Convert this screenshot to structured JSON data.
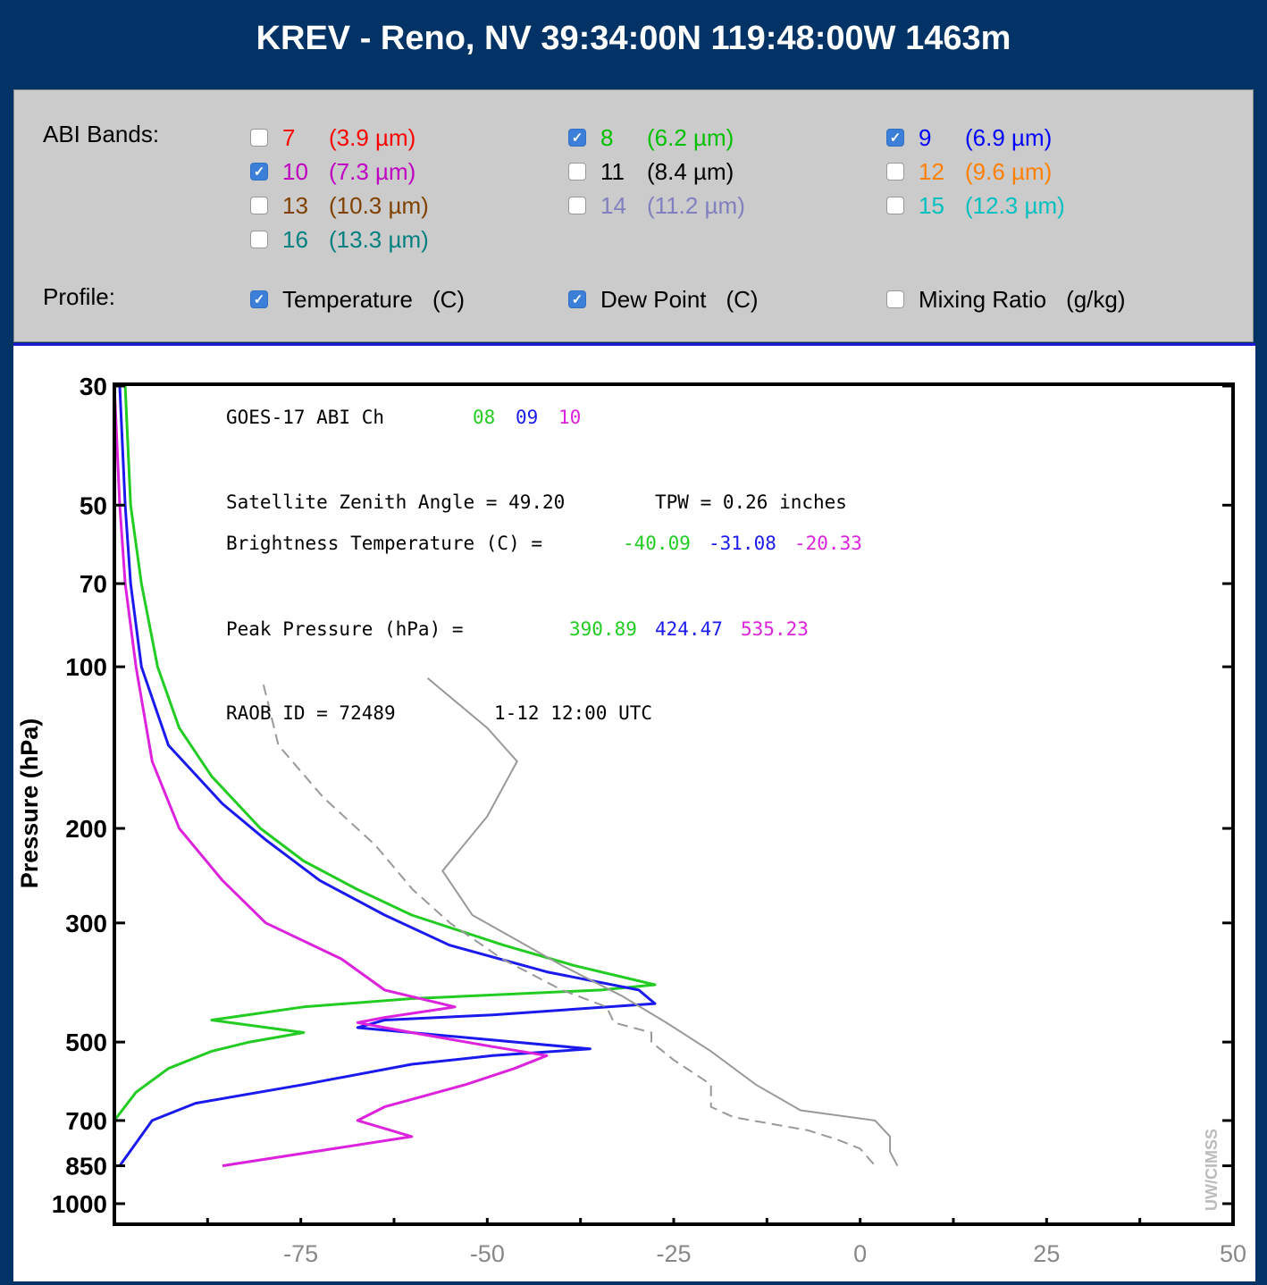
{
  "title": "KREV - Reno, NV 39:34:00N 119:48:00W 1463m",
  "controls": {
    "bands_label": "ABI Bands:",
    "profile_label": "Profile:",
    "bands": [
      {
        "num": "7",
        "wl": "(3.9 µm)",
        "checked": false,
        "color": "#ff0000"
      },
      {
        "num": "8",
        "wl": "(6.2 µm)",
        "checked": true,
        "color": "#00c000"
      },
      {
        "num": "9",
        "wl": "(6.9 µm)",
        "checked": true,
        "color": "#0000ff"
      },
      {
        "num": "10",
        "wl": "(7.3 µm)",
        "checked": true,
        "color": "#c000c0"
      },
      {
        "num": "11",
        "wl": "(8.4 µm)",
        "checked": false,
        "color": "#000000"
      },
      {
        "num": "12",
        "wl": "(9.6 µm)",
        "checked": false,
        "color": "#ff8000"
      },
      {
        "num": "13",
        "wl": "(10.3 µm)",
        "checked": false,
        "color": "#804000"
      },
      {
        "num": "14",
        "wl": "(11.2 µm)",
        "checked": false,
        "color": "#8080c0"
      },
      {
        "num": "15",
        "wl": "(12.3 µm)",
        "checked": false,
        "color": "#00c0c0"
      },
      {
        "num": "16",
        "wl": "(13.3 µm)",
        "checked": false,
        "color": "#008080"
      }
    ],
    "profiles": [
      {
        "name": "Temperature",
        "unit": "(C)",
        "checked": true
      },
      {
        "name": "Dew Point",
        "unit": "(C)",
        "checked": true
      },
      {
        "name": "Mixing Ratio",
        "unit": "(g/kg)",
        "checked": false
      }
    ]
  },
  "chart_data": {
    "type": "line",
    "ylabel": "Pressure (hPa)",
    "y_scale": "log",
    "y_ticks": [
      30,
      50,
      70,
      100,
      200,
      300,
      500,
      700,
      850,
      1000
    ],
    "x_ticks": [
      -75,
      -50,
      -25,
      0,
      25,
      50
    ],
    "xlim": [
      -100,
      50
    ],
    "annotations": {
      "header": "GOES-17 ABI  Ch",
      "channels": [
        "08",
        "09",
        "10"
      ],
      "zenith": "Satellite Zenith Angle = 49.20",
      "tpw": "TPW = 0.26 inches",
      "bt_label": "Brightness Temperature (C) =",
      "bt_values": [
        "-40.09",
        "-31.08",
        "-20.33"
      ],
      "peak_label": "Peak Pressure (hPa) =",
      "peak_values": [
        "390.89",
        "424.47",
        "535.23"
      ],
      "raob": "RAOB ID = 72489",
      "time": "1-12 12:00 UTC",
      "credit": "UW/CIMSS"
    },
    "weighting_functions": [
      {
        "channel": "08",
        "color": "#22cc22",
        "points": [
          [
            0.02,
            30
          ],
          [
            0.03,
            50
          ],
          [
            0.05,
            70
          ],
          [
            0.08,
            100
          ],
          [
            0.12,
            130
          ],
          [
            0.18,
            160
          ],
          [
            0.27,
            200
          ],
          [
            0.35,
            230
          ],
          [
            0.45,
            260
          ],
          [
            0.55,
            290
          ],
          [
            0.72,
            330
          ],
          [
            0.85,
            360
          ],
          [
            1.0,
            391
          ],
          [
            0.9,
            400
          ],
          [
            0.55,
            415
          ],
          [
            0.35,
            430
          ],
          [
            0.18,
            455
          ],
          [
            0.35,
            480
          ],
          [
            0.25,
            500
          ],
          [
            0.18,
            520
          ],
          [
            0.1,
            560
          ],
          [
            0.04,
            620
          ],
          [
            0.0,
            700
          ]
        ]
      },
      {
        "channel": "09",
        "color": "#1a1aee",
        "points": [
          [
            0.01,
            30
          ],
          [
            0.02,
            50
          ],
          [
            0.03,
            70
          ],
          [
            0.05,
            100
          ],
          [
            0.1,
            140
          ],
          [
            0.2,
            180
          ],
          [
            0.28,
            210
          ],
          [
            0.38,
            250
          ],
          [
            0.5,
            290
          ],
          [
            0.62,
            330
          ],
          [
            0.8,
            370
          ],
          [
            0.97,
            400
          ],
          [
            1.0,
            424
          ],
          [
            0.7,
            445
          ],
          [
            0.5,
            455
          ],
          [
            0.45,
            470
          ],
          [
            0.88,
            515
          ],
          [
            0.7,
            530
          ],
          [
            0.55,
            550
          ],
          [
            0.35,
            600
          ],
          [
            0.15,
            650
          ],
          [
            0.07,
            700
          ],
          [
            0.01,
            850
          ]
        ]
      },
      {
        "channel": "10",
        "color": "#dd22dd",
        "points": [
          [
            0.0,
            30
          ],
          [
            0.01,
            50
          ],
          [
            0.02,
            70
          ],
          [
            0.04,
            100
          ],
          [
            0.07,
            150
          ],
          [
            0.12,
            200
          ],
          [
            0.2,
            250
          ],
          [
            0.28,
            300
          ],
          [
            0.42,
            350
          ],
          [
            0.5,
            400
          ],
          [
            0.63,
            430
          ],
          [
            0.5,
            450
          ],
          [
            0.45,
            460
          ],
          [
            0.55,
            480
          ],
          [
            0.7,
            510
          ],
          [
            0.8,
            530
          ],
          [
            0.74,
            560
          ],
          [
            0.65,
            600
          ],
          [
            0.5,
            660
          ],
          [
            0.45,
            700
          ],
          [
            0.55,
            750
          ],
          [
            0.2,
            850
          ]
        ]
      }
    ],
    "temperature": {
      "color": "#999999",
      "points": [
        [
          -58,
          105
        ],
        [
          -50,
          130
        ],
        [
          -46,
          150
        ],
        [
          -50,
          190
        ],
        [
          -56,
          240
        ],
        [
          -52,
          290
        ],
        [
          -40,
          360
        ],
        [
          -32,
          410
        ],
        [
          -26,
          460
        ],
        [
          -20,
          520
        ],
        [
          -14,
          600
        ],
        [
          -8,
          670
        ],
        [
          2,
          700
        ],
        [
          4,
          750
        ],
        [
          4,
          800
        ],
        [
          5,
          850
        ]
      ]
    },
    "dew_point": {
      "color": "#999999",
      "points": [
        [
          -80,
          108
        ],
        [
          -78,
          140
        ],
        [
          -72,
          175
        ],
        [
          -65,
          215
        ],
        [
          -60,
          260
        ],
        [
          -55,
          300
        ],
        [
          -48,
          350
        ],
        [
          -40,
          400
        ],
        [
          -34,
          430
        ],
        [
          -33,
          460
        ],
        [
          -28,
          480
        ],
        [
          -28,
          500
        ],
        [
          -25,
          540
        ],
        [
          -20,
          600
        ],
        [
          -20,
          660
        ],
        [
          -17,
          690
        ],
        [
          -7,
          730
        ],
        [
          -3,
          760
        ],
        [
          0,
          790
        ],
        [
          2,
          850
        ]
      ]
    }
  }
}
